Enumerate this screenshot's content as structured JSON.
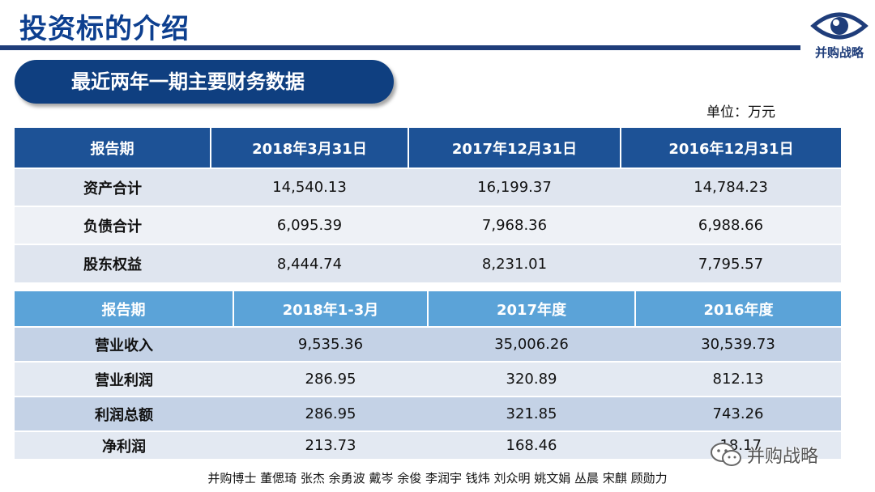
{
  "header": {
    "title": "投资标的介绍",
    "logo_text": "并购战略"
  },
  "section": {
    "title": "最近两年一期主要财务数据",
    "unit": "单位：万元"
  },
  "balance_table": {
    "headers": [
      "报告期",
      "2018年3月31日",
      "2017年12月31日",
      "2016年12月31日"
    ],
    "rows": [
      {
        "label": "资产合计",
        "values": [
          "14,540.13",
          "16,199.37",
          "14,784.23"
        ]
      },
      {
        "label": "负债合计",
        "values": [
          "6,095.39",
          "7,968.36",
          "6,988.66"
        ]
      },
      {
        "label": "股东权益",
        "values": [
          "8,444.74",
          "8,231.01",
          "7,795.57"
        ]
      }
    ]
  },
  "income_table": {
    "headers": [
      "报告期",
      "2018年1-3月",
      "2017年度",
      "2016年度"
    ],
    "rows": [
      {
        "label": "营业收入",
        "values": [
          "9,535.36",
          "35,006.26",
          "30,539.73"
        ]
      },
      {
        "label": "营业利润",
        "values": [
          "286.95",
          "320.89",
          "812.13"
        ]
      },
      {
        "label": "利润总额",
        "values": [
          "286.95",
          "321.85",
          "743.26"
        ]
      },
      {
        "label": "净利润",
        "values": [
          "213.73",
          "168.46",
          "-18.17"
        ]
      }
    ]
  },
  "watermark": {
    "text": "并购战略",
    "icon": "wechat-icon"
  },
  "footer": {
    "credits": "并购博士 董偲琦 张杰 余勇波 戴岑 余俊 李润宇 钱炜 刘众明 姚文娟 丛晨 宋麒 顾勋力"
  },
  "colors": {
    "title": "#0d3f8f",
    "dark_header": "#1d5296",
    "light_header": "#5ba3d8"
  }
}
